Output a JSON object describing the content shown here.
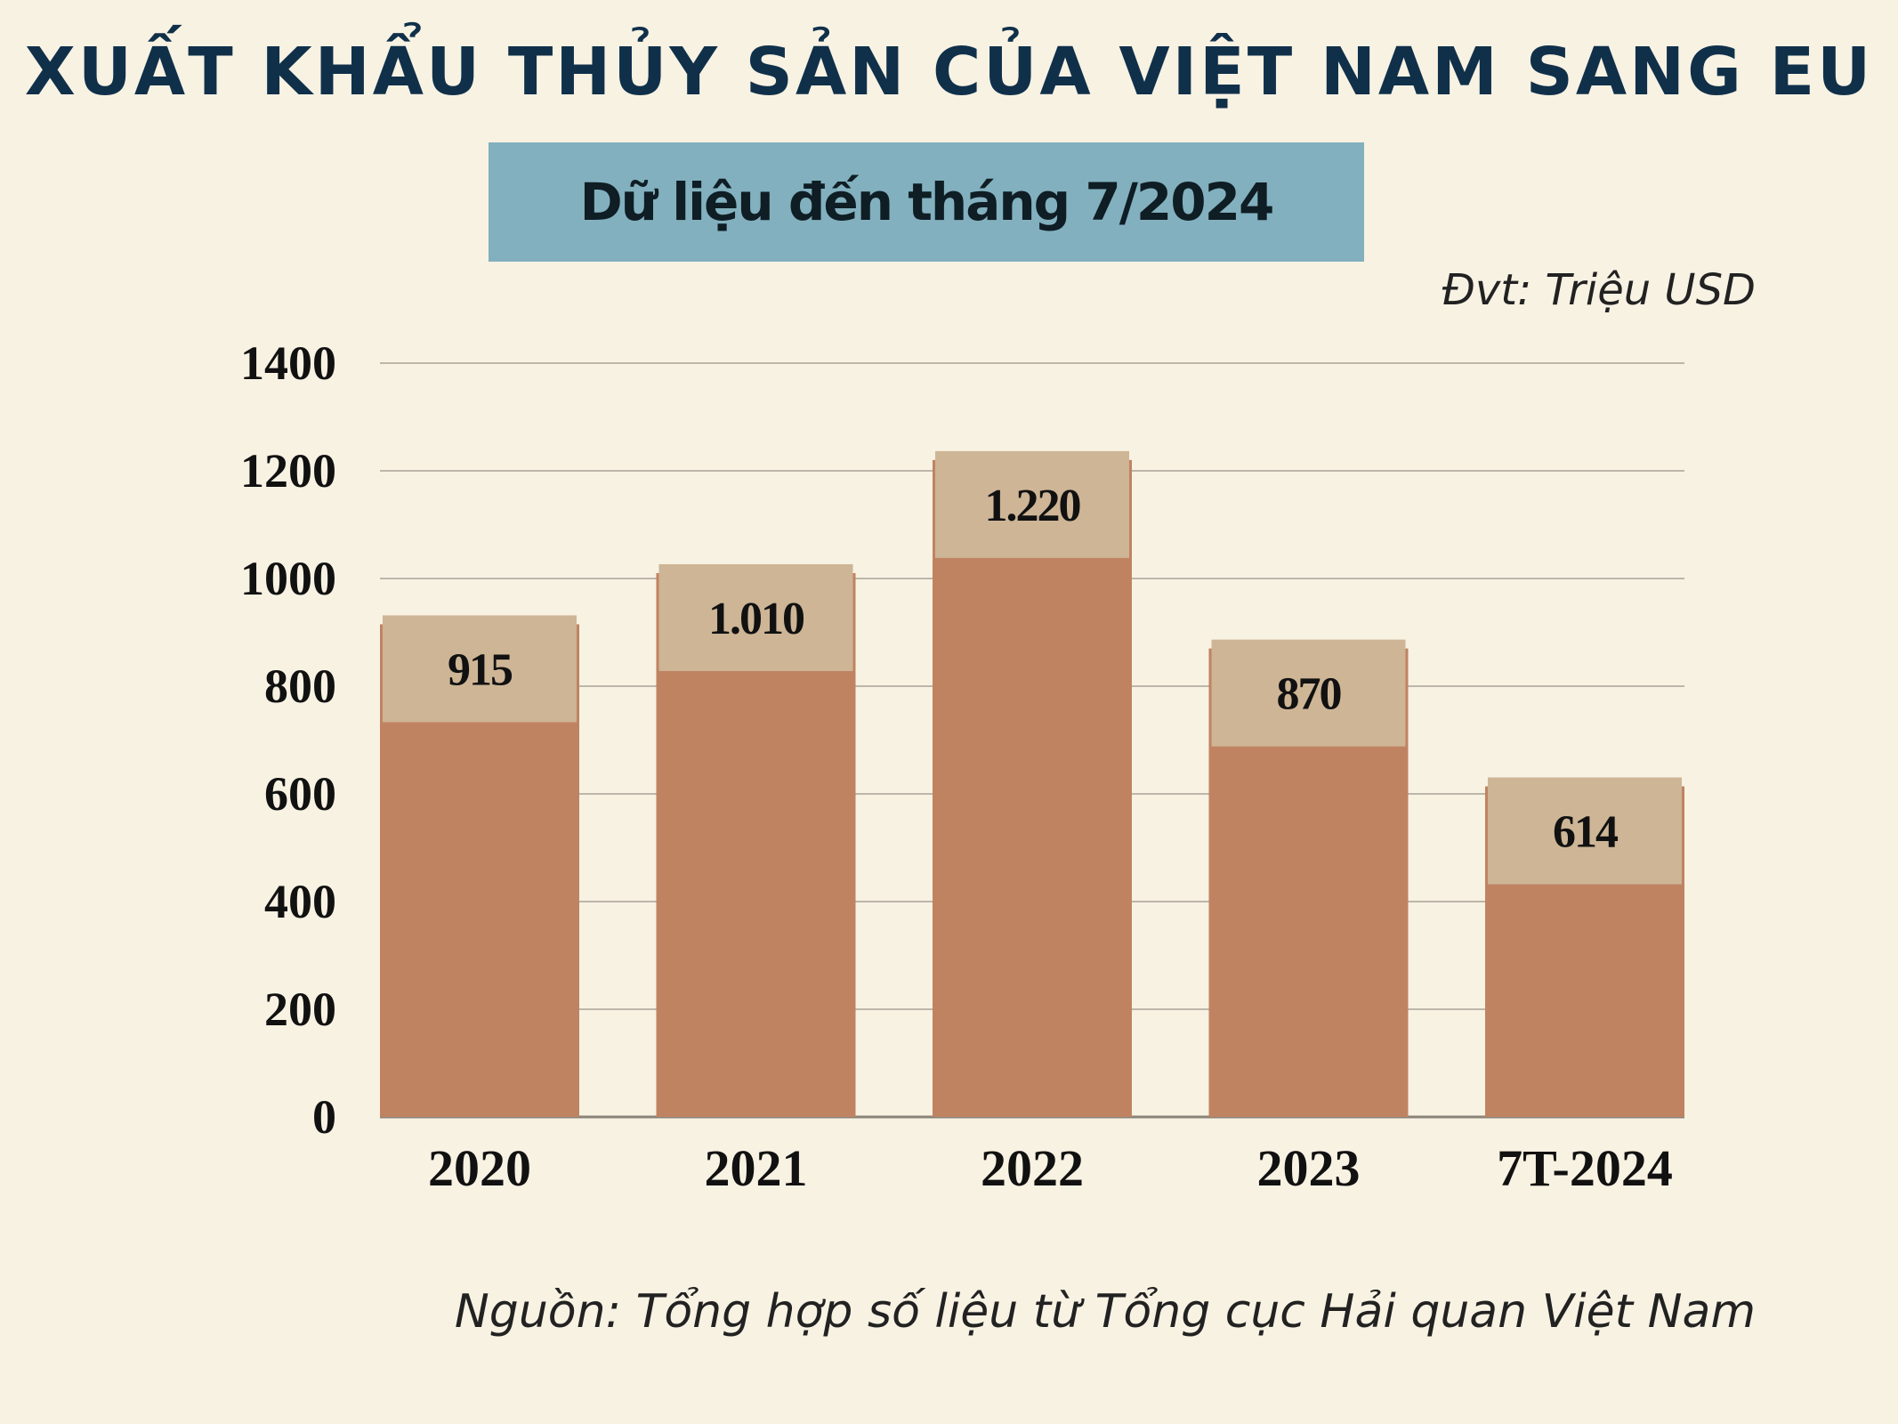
{
  "header": {
    "title": "XUẤT KHẨU THỦY SẢN CỦA VIỆT NAM SANG EU",
    "subtitle": "Dữ liệu đến tháng 7/2024",
    "unit": "Đvt: Triệu USD"
  },
  "footer": {
    "source": "Nguồn: Tổng hợp số liệu từ Tổng cục Hải quan Việt Nam"
  },
  "colors": {
    "background": "#f8f2e3",
    "bar": "#c08362",
    "label_box": "#cdb596",
    "subtitle_box": "#82b0be",
    "title": "#10304a",
    "grid": "#bdb6aa"
  },
  "chart_data": {
    "type": "bar",
    "categories": [
      "2020",
      "2021",
      "2022",
      "2023",
      "7T-2024"
    ],
    "values": [
      915,
      1010,
      1220,
      870,
      614
    ],
    "value_labels": [
      "915",
      "1.010",
      "1.220",
      "870",
      "614"
    ],
    "yticks": [
      "0",
      "200",
      "400",
      "600",
      "800",
      "1000",
      "1200",
      "1400"
    ],
    "ylim": [
      0,
      1400
    ],
    "grid": true,
    "legend": "none"
  }
}
